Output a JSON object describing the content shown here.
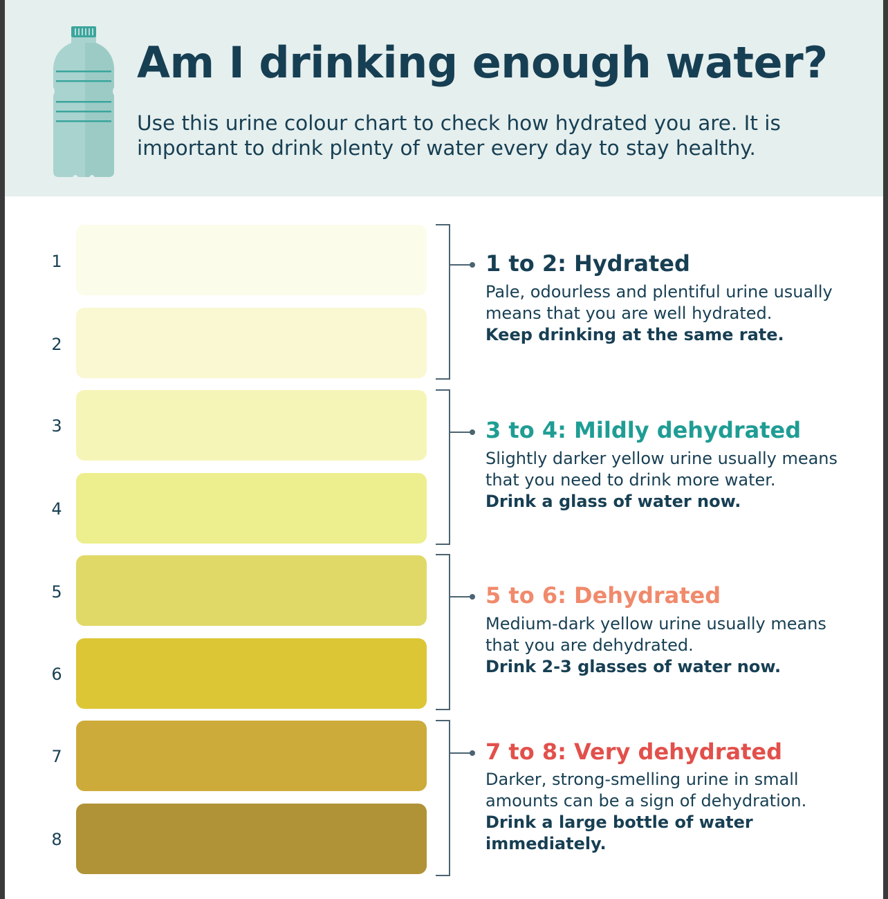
{
  "header": {
    "title": "Am I drinking enough water?",
    "subtitle": "Use this urine colour chart to check how hydrated you are. It is important to drink plenty of water every day to stay healthy.",
    "bottle_icon": "water-bottle-icon",
    "background_color": "#e5efee"
  },
  "chart": {
    "levels": [
      {
        "number": "1",
        "color": "#fbfcea"
      },
      {
        "number": "2",
        "color": "#f9f8d2"
      },
      {
        "number": "3",
        "color": "#f6f5b8"
      },
      {
        "number": "4",
        "color": "#edee8d"
      },
      {
        "number": "5",
        "color": "#e0d968"
      },
      {
        "number": "6",
        "color": "#dcc636"
      },
      {
        "number": "7",
        "color": "#cdab3a"
      },
      {
        "number": "8",
        "color": "#b09336"
      }
    ],
    "groups": [
      {
        "title": "1 to 2: Hydrated",
        "title_color": "#173f53",
        "description": "Pale, odourless and plentiful urine usually means that you are well hydrated.",
        "advice": "Keep drinking at the same rate."
      },
      {
        "title": "3 to 4: Mildly dehydrated",
        "title_color": "#1f9d94",
        "description": "Slightly darker yellow urine usually means that you need to drink more water.",
        "advice": "Drink a glass of water now."
      },
      {
        "title": "5 to 6: Dehydrated",
        "title_color": "#f08a6c",
        "description": "Medium-dark yellow urine usually means that you are dehydrated.",
        "advice": "Drink 2-3 glasses of water now."
      },
      {
        "title": "7 to 8: Very dehydrated",
        "title_color": "#e2504b",
        "description": "Darker, strong-smelling urine in small amounts can be a sign of dehydration.",
        "advice": "Drink a large bottle of water immediately."
      }
    ]
  }
}
